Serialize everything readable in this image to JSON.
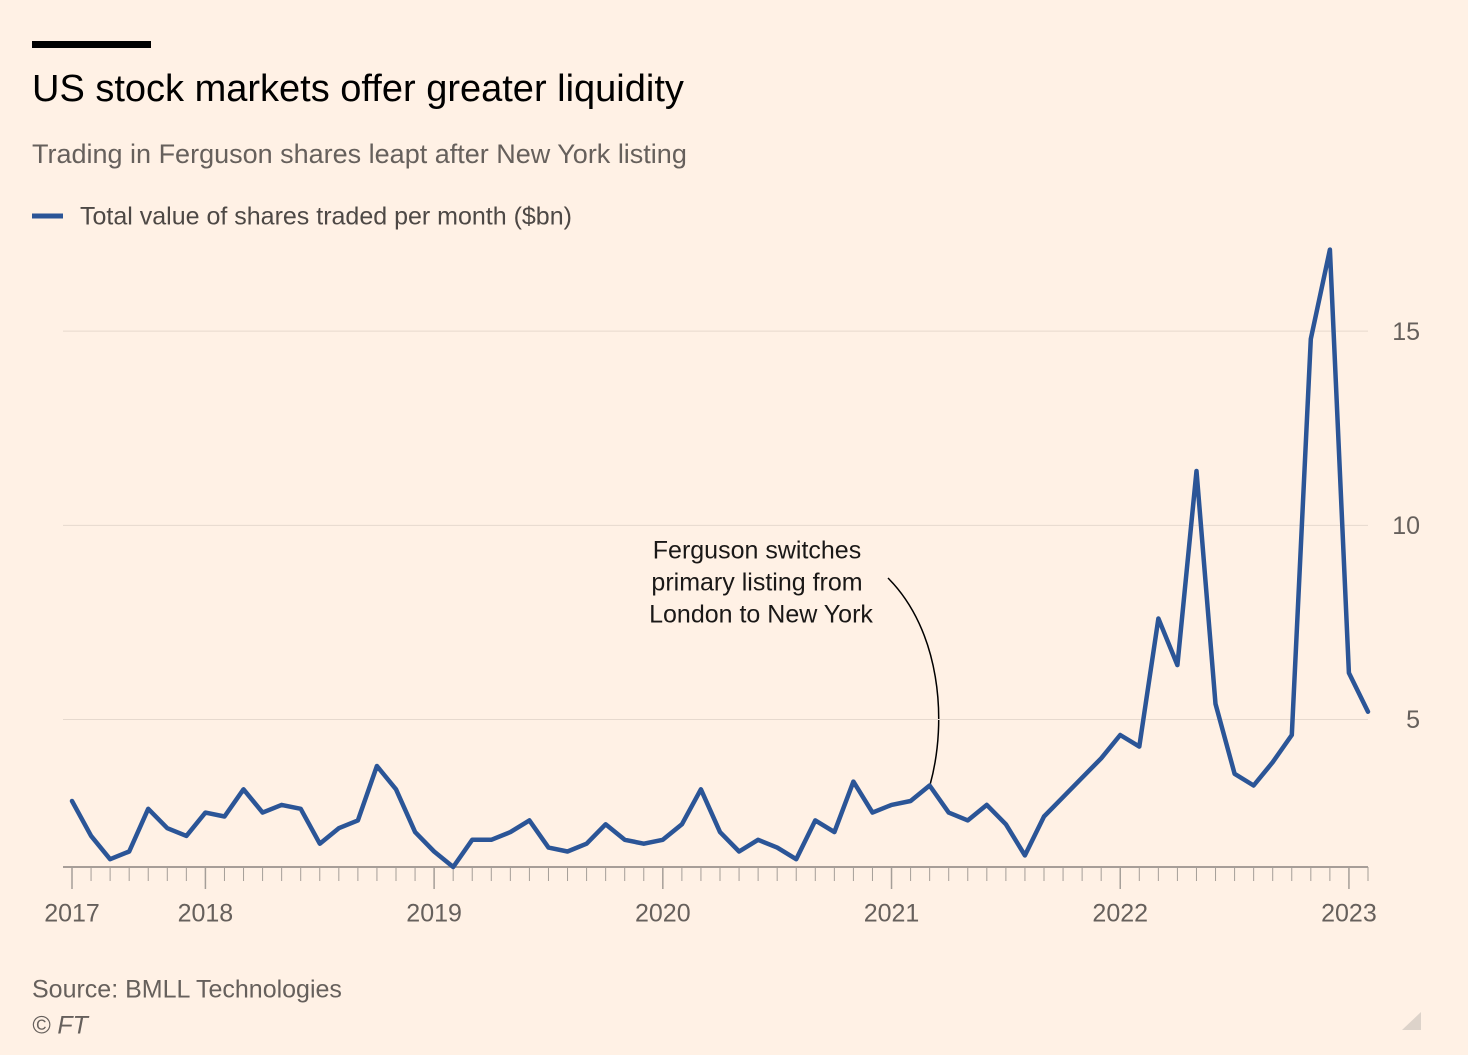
{
  "chart_data": {
    "type": "line",
    "title": "US stock markets offer greater liquidity",
    "subtitle": "Trading in Ferguson shares leapt after New York listing",
    "categories": [
      "2017",
      null,
      null,
      null,
      null,
      null,
      null,
      "2018",
      null,
      null,
      null,
      null,
      null,
      null,
      null,
      null,
      null,
      null,
      null,
      "2019",
      null,
      null,
      null,
      null,
      null,
      null,
      null,
      null,
      null,
      null,
      null,
      "2020",
      null,
      null,
      null,
      null,
      null,
      null,
      null,
      null,
      null,
      null,
      null,
      "2021",
      null,
      null,
      null,
      null,
      null,
      null,
      null,
      null,
      null,
      null,
      null,
      "2022",
      null,
      null,
      null,
      null,
      null,
      null,
      null,
      null,
      null,
      null,
      null,
      "2023",
      null
    ],
    "series": [
      {
        "name": "Total value of shares traded per month ($bn)",
        "color": "#2b5597",
        "values": [
          2.9,
          2.0,
          1.4,
          1.6,
          2.7,
          2.2,
          2.0,
          2.6,
          2.5,
          3.2,
          2.6,
          2.8,
          2.7,
          1.8,
          2.2,
          2.4,
          3.8,
          3.2,
          2.1,
          1.6,
          1.2,
          1.9,
          1.9,
          2.1,
          2.4,
          1.7,
          1.6,
          1.8,
          2.3,
          1.9,
          1.8,
          1.9,
          2.3,
          3.2,
          2.1,
          1.6,
          1.9,
          1.7,
          1.4,
          2.4,
          2.1,
          3.4,
          2.6,
          2.8,
          2.9,
          3.3,
          2.6,
          2.4,
          2.8,
          2.3,
          1.5,
          2.5,
          3.0,
          3.5,
          4.0,
          4.6,
          4.3,
          7.6,
          6.4,
          11.4,
          5.4,
          3.6,
          3.3,
          3.9,
          4.6,
          14.8,
          17.1,
          6.2,
          5.2
        ]
      }
    ],
    "ylim": [
      1.2,
      17.4
    ],
    "yticks": [
      5,
      10,
      15
    ],
    "grid": true,
    "annotation": [
      "Ferguson switches",
      "primary listing from",
      "London to New York"
    ],
    "source": "Source: BMLL Technologies",
    "copyright": "© FT"
  }
}
